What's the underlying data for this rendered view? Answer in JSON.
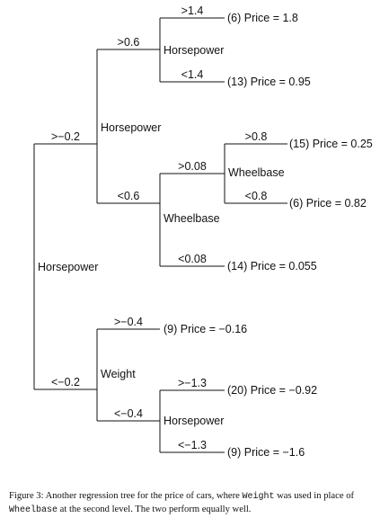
{
  "tree": {
    "root": {
      "label": "Horsepower"
    },
    "branches": {
      "root_hi": ">−0.2",
      "root_lo": "<−0.2"
    },
    "upper": {
      "node": "Horsepower",
      "split_hi": ">0.6",
      "split_lo": "<0.6",
      "hp_node": {
        "label": "Horsepower",
        "split_hi": ">1.4",
        "split_lo": "<1.4",
        "leaf_hi": "(6) Price = 1.8",
        "leaf_lo": "(13) Price = 0.95"
      },
      "wb_node": {
        "label": "Wheelbase",
        "split_hi": ">0.08",
        "split_lo": "<0.08",
        "leaf_lo": "(14) Price = 0.055",
        "inner": {
          "label": "Wheelbase",
          "split_hi": ">0.8",
          "split_lo": "<0.8",
          "leaf_hi": "(15) Price = 0.25",
          "leaf_lo": "(6) Price = 0.82"
        }
      }
    },
    "lower": {
      "node": "Weight",
      "split_hi": ">−0.4",
      "split_lo": "<−0.4",
      "leaf_hi": "(9) Price = −0.16",
      "hp_node": {
        "label": "Horsepower",
        "split_hi": ">−1.3",
        "split_lo": "<−1.3",
        "leaf_hi": "(20) Price = −0.92",
        "leaf_lo": "(9) Price = −1.6"
      }
    }
  },
  "caption": {
    "prefix": "Figure 3: Another regression tree for the price of cars, where ",
    "code1": "Weight",
    "middle": " was used in place of ",
    "code2": "Wheelbase",
    "suffix": " at the second level. The two perform equally well."
  }
}
